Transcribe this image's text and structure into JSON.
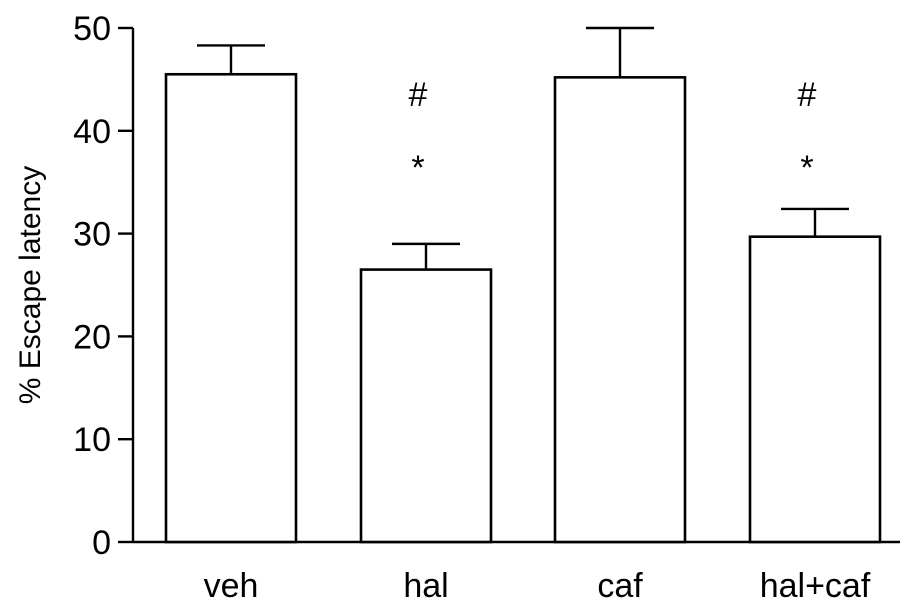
{
  "chart_data": {
    "type": "bar",
    "categories": [
      "veh",
      "hal",
      "caf",
      "hal+caf"
    ],
    "values": [
      45.5,
      26.5,
      45.2,
      29.7
    ],
    "errors": [
      2.8,
      2.5,
      4.8,
      2.7
    ],
    "annotations": [
      {
        "category": "hal",
        "marks": [
          "#",
          "*"
        ]
      },
      {
        "category": "hal+caf",
        "marks": [
          "#",
          "*"
        ]
      }
    ],
    "xlabel": "",
    "ylabel": "% Escape latency",
    "ylim": [
      0,
      50
    ],
    "yticks": [
      0,
      10,
      20,
      30,
      40,
      50
    ],
    "ytick_labels": [
      "0",
      "10",
      "20",
      "30",
      "40",
      "50"
    ],
    "grid": false,
    "bar_color": "#ffffff",
    "edge_color": "#000000"
  }
}
